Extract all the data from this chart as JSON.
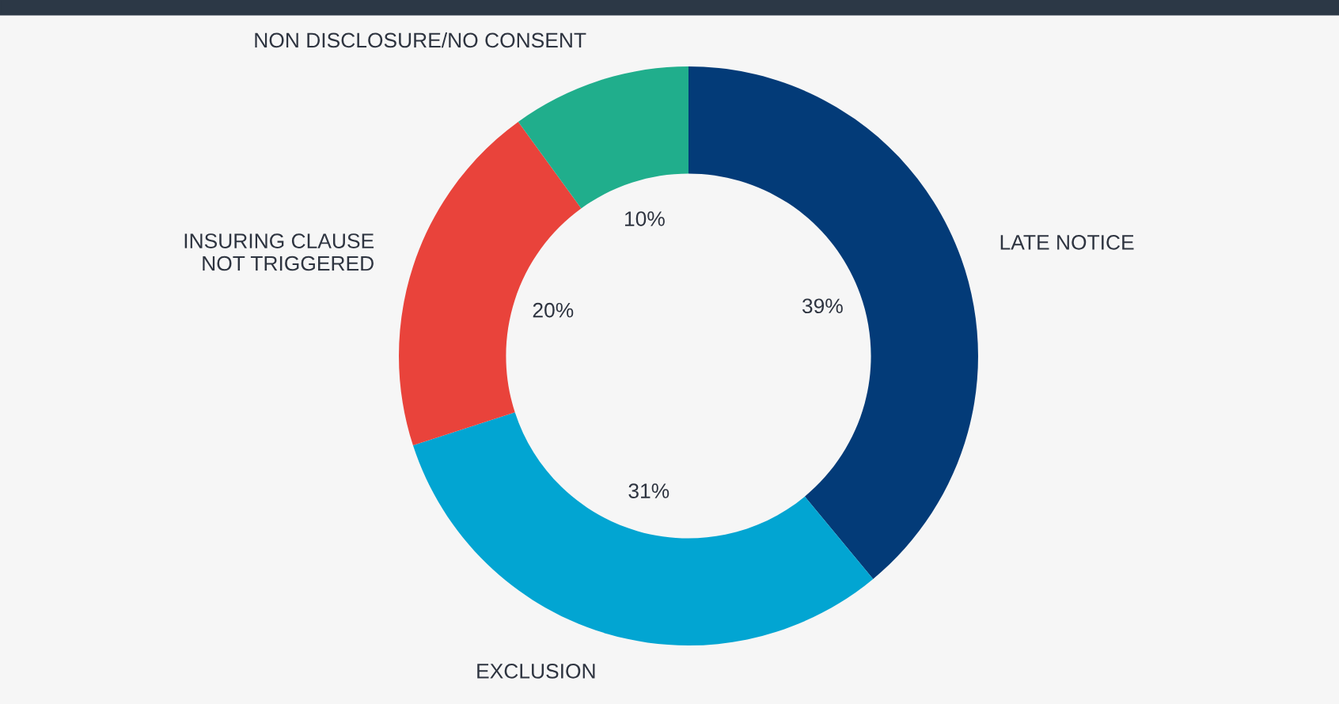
{
  "chart_data": {
    "type": "donut",
    "categories": [
      "LATE NOTICE",
      "EXCLUSION",
      "INSURING CLAUSE\nNOT TRIGGERED",
      "NON DISCLOSURE/NO CONSENT"
    ],
    "values": [
      39,
      31,
      20,
      10
    ],
    "colors": [
      "#033b78",
      "#02a5d2",
      "#e9433b",
      "#20ae8c"
    ],
    "value_labels": [
      "39%",
      "31%",
      "20%",
      "10%"
    ],
    "legend": false
  }
}
